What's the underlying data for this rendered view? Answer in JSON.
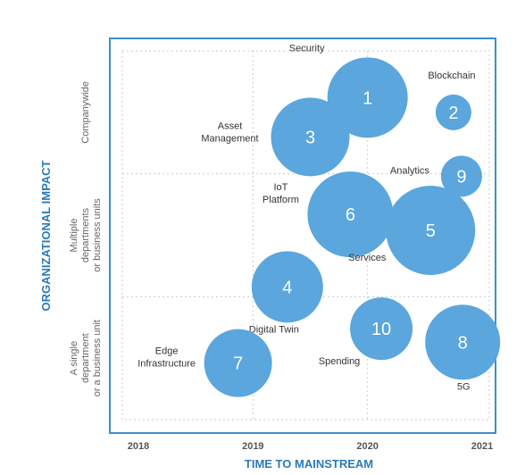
{
  "chart_data": {
    "type": "scatter",
    "xlabel": "TIME TO MAINSTREAM",
    "ylabel": "ORGANIZATIONAL IMPACT",
    "x_ticks": [
      "2018",
      "2019",
      "2020",
      "2021"
    ],
    "y_bands": [
      [
        "A single",
        "department",
        "or a business unit"
      ],
      [
        "Multiple",
        "departments",
        "or business units"
      ],
      [
        "Companywide"
      ]
    ],
    "xlim": [
      2017.9,
      2021.1
    ],
    "ylim": [
      0,
      3
    ],
    "grid": true,
    "colors": {
      "bubble": "#5aa6dd",
      "axis_title": "#2a7ab8",
      "frame": "#3d8fc8",
      "grid": "#b9cfe0"
    },
    "points": [
      {
        "id": "1",
        "label": "Security",
        "x": 2020.0,
        "y": 2.62,
        "size": 45
      },
      {
        "id": "2",
        "label": "Blockchain",
        "x": 2020.75,
        "y": 2.5,
        "size": 20
      },
      {
        "id": "3",
        "label": "Asset Management",
        "x": 2019.5,
        "y": 2.3,
        "size": 44
      },
      {
        "id": "9",
        "label": "Analytics",
        "x": 2020.82,
        "y": 1.98,
        "size": 23
      },
      {
        "id": "6",
        "label": "IoT Platform",
        "x": 2019.85,
        "y": 1.67,
        "size": 48
      },
      {
        "id": "5",
        "label": "Services",
        "x": 2020.55,
        "y": 1.54,
        "size": 50
      },
      {
        "id": "4",
        "label": "Digital Twin",
        "x": 2019.3,
        "y": 1.08,
        "size": 40
      },
      {
        "id": "10",
        "label": "Spending",
        "x": 2020.12,
        "y": 0.74,
        "size": 35
      },
      {
        "id": "8",
        "label": "5G",
        "x": 2020.83,
        "y": 0.63,
        "size": 42
      },
      {
        "id": "7",
        "label": "Edge Infrastructure",
        "x": 2018.87,
        "y": 0.46,
        "size": 38
      }
    ]
  }
}
